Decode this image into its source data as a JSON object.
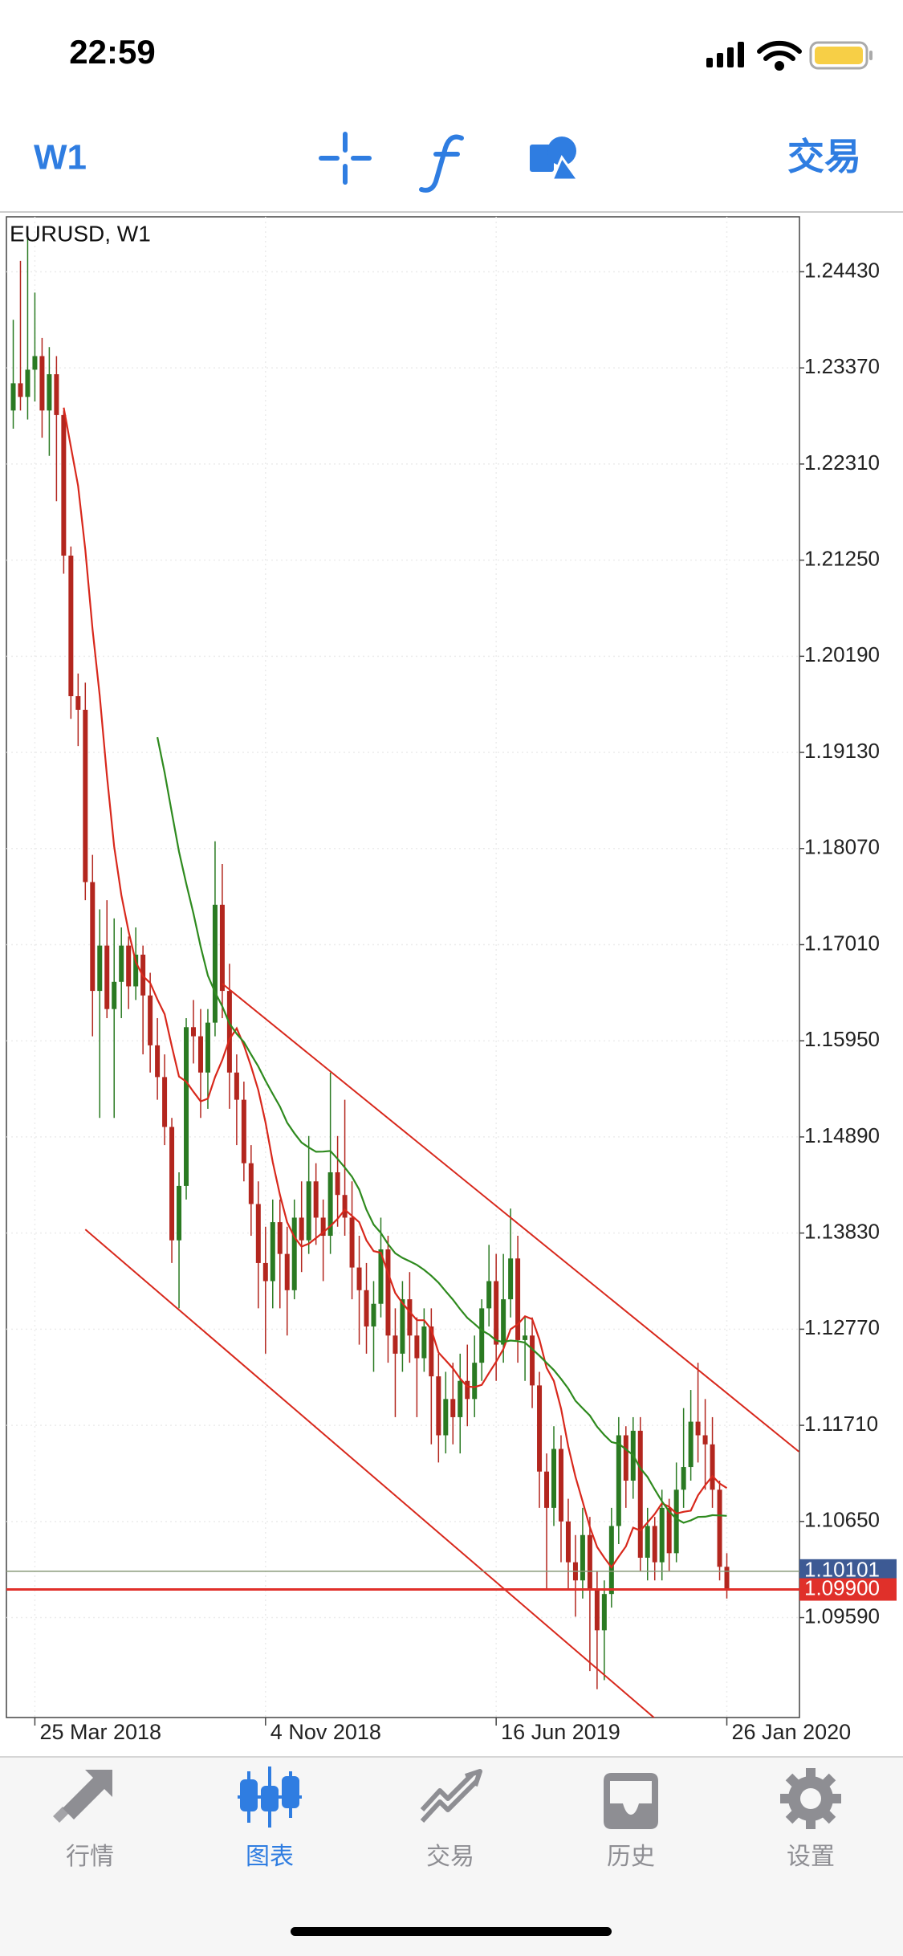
{
  "status_bar": {
    "time": "22:59"
  },
  "toolbar": {
    "timeframe": "W1",
    "trade": "交易"
  },
  "chart_data": {
    "type": "candlestick",
    "title": "EURUSD, W1",
    "categories": [
      null,
      null,
      null,
      "25 Mar 2018",
      null,
      null,
      null,
      null,
      null,
      null,
      null,
      null,
      null,
      null,
      null,
      null,
      null,
      null,
      null,
      null,
      null,
      null,
      null,
      null,
      null,
      null,
      null,
      null,
      null,
      null,
      null,
      null,
      null,
      null,
      null,
      "4 Nov 2018",
      null,
      null,
      null,
      null,
      null,
      null,
      null,
      null,
      null,
      null,
      null,
      null,
      null,
      null,
      null,
      null,
      null,
      null,
      null,
      null,
      null,
      null,
      null,
      null,
      null,
      null,
      null,
      null,
      null,
      null,
      null,
      "16 Jun 2019",
      null,
      null,
      null,
      null,
      null,
      null,
      null,
      null,
      null,
      null,
      null,
      null,
      null,
      null,
      null,
      null,
      null,
      null,
      null,
      null,
      null,
      null,
      null,
      null,
      null,
      null,
      null,
      null,
      null,
      null,
      null,
      "26 Jan 2020"
    ],
    "candles": [
      [
        1.229,
        1.239,
        1.227,
        1.232
      ],
      [
        1.232,
        1.2455,
        1.229,
        1.2305
      ],
      [
        1.2305,
        1.248,
        1.228,
        1.2335
      ],
      [
        1.2335,
        1.242,
        1.23,
        1.235
      ],
      [
        1.235,
        1.237,
        1.226,
        1.229
      ],
      [
        1.229,
        1.236,
        1.224,
        1.233
      ],
      [
        1.233,
        1.235,
        1.219,
        1.2285
      ],
      [
        1.2285,
        1.229,
        1.211,
        1.213
      ],
      [
        1.213,
        1.214,
        1.195,
        1.1975
      ],
      [
        1.1975,
        1.2,
        1.192,
        1.196
      ],
      [
        1.196,
        1.199,
        1.175,
        1.177
      ],
      [
        1.177,
        1.18,
        1.16,
        1.165
      ],
      [
        1.165,
        1.174,
        1.151,
        1.17
      ],
      [
        1.17,
        1.175,
        1.162,
        1.163
      ],
      [
        1.163,
        1.173,
        1.151,
        1.166
      ],
      [
        1.166,
        1.172,
        1.162,
        1.17
      ],
      [
        1.17,
        1.171,
        1.163,
        1.1655
      ],
      [
        1.1655,
        1.172,
        1.164,
        1.169
      ],
      [
        1.169,
        1.17,
        1.158,
        1.1645
      ],
      [
        1.1645,
        1.167,
        1.156,
        1.159
      ],
      [
        1.159,
        1.162,
        1.153,
        1.1555
      ],
      [
        1.1555,
        1.158,
        1.148,
        1.15
      ],
      [
        1.15,
        1.151,
        1.135,
        1.1375
      ],
      [
        1.1375,
        1.145,
        1.13,
        1.1435
      ],
      [
        1.1435,
        1.162,
        1.142,
        1.161
      ],
      [
        1.161,
        1.164,
        1.157,
        1.16
      ],
      [
        1.16,
        1.163,
        1.151,
        1.156
      ],
      [
        1.156,
        1.163,
        1.152,
        1.1615
      ],
      [
        1.1615,
        1.1815,
        1.16,
        1.1745
      ],
      [
        1.1745,
        1.179,
        1.162,
        1.165
      ],
      [
        1.165,
        1.168,
        1.152,
        1.156
      ],
      [
        1.156,
        1.158,
        1.148,
        1.153
      ],
      [
        1.153,
        1.155,
        1.144,
        1.146
      ],
      [
        1.146,
        1.148,
        1.138,
        1.1415
      ],
      [
        1.1415,
        1.144,
        1.13,
        1.135
      ],
      [
        1.135,
        1.139,
        1.125,
        1.133
      ],
      [
        1.133,
        1.142,
        1.13,
        1.1395
      ],
      [
        1.1395,
        1.142,
        1.13,
        1.136
      ],
      [
        1.136,
        1.139,
        1.127,
        1.132
      ],
      [
        1.132,
        1.142,
        1.131,
        1.14
      ],
      [
        1.14,
        1.144,
        1.134,
        1.1375
      ],
      [
        1.1375,
        1.149,
        1.136,
        1.144
      ],
      [
        1.144,
        1.146,
        1.137,
        1.14
      ],
      [
        1.14,
        1.142,
        1.133,
        1.138
      ],
      [
        1.138,
        1.156,
        1.136,
        1.145
      ],
      [
        1.145,
        1.149,
        1.139,
        1.1425
      ],
      [
        1.1425,
        1.153,
        1.138,
        1.14
      ],
      [
        1.14,
        1.144,
        1.131,
        1.1345
      ],
      [
        1.1345,
        1.138,
        1.126,
        1.132
      ],
      [
        1.132,
        1.135,
        1.125,
        1.128
      ],
      [
        1.128,
        1.133,
        1.123,
        1.1305
      ],
      [
        1.1305,
        1.14,
        1.129,
        1.1365
      ],
      [
        1.1365,
        1.138,
        1.124,
        1.127
      ],
      [
        1.127,
        1.13,
        1.118,
        1.125
      ],
      [
        1.125,
        1.133,
        1.123,
        1.131
      ],
      [
        1.131,
        1.134,
        1.124,
        1.127
      ],
      [
        1.127,
        1.129,
        1.118,
        1.1245
      ],
      [
        1.1245,
        1.13,
        1.123,
        1.128
      ],
      [
        1.128,
        1.13,
        1.115,
        1.1225
      ],
      [
        1.1225,
        1.125,
        1.113,
        1.116
      ],
      [
        1.116,
        1.123,
        1.114,
        1.12
      ],
      [
        1.12,
        1.124,
        1.115,
        1.118
      ],
      [
        1.118,
        1.125,
        1.114,
        1.122
      ],
      [
        1.122,
        1.126,
        1.117,
        1.12
      ],
      [
        1.12,
        1.127,
        1.118,
        1.124
      ],
      [
        1.124,
        1.131,
        1.122,
        1.13
      ],
      [
        1.13,
        1.137,
        1.128,
        1.133
      ],
      [
        1.133,
        1.136,
        1.122,
        1.126
      ],
      [
        1.126,
        1.136,
        1.124,
        1.131
      ],
      [
        1.131,
        1.141,
        1.129,
        1.1355
      ],
      [
        1.1355,
        1.138,
        1.124,
        1.1265
      ],
      [
        1.1265,
        1.129,
        1.122,
        1.127
      ],
      [
        1.127,
        1.129,
        1.119,
        1.1215
      ],
      [
        1.1215,
        1.123,
        1.108,
        1.112
      ],
      [
        1.112,
        1.114,
        1.099,
        1.108
      ],
      [
        1.108,
        1.117,
        1.106,
        1.1145
      ],
      [
        1.1145,
        1.116,
        1.102,
        1.1065
      ],
      [
        1.1065,
        1.109,
        1.099,
        1.102
      ],
      [
        1.102,
        1.105,
        1.096,
        1.1
      ],
      [
        1.1,
        1.108,
        1.098,
        1.105
      ],
      [
        1.105,
        1.107,
        1.09,
        1.099
      ],
      [
        1.099,
        1.101,
        1.088,
        1.0945
      ],
      [
        1.0945,
        1.1,
        1.089,
        1.0985
      ],
      [
        1.0985,
        1.108,
        1.097,
        1.106
      ],
      [
        1.106,
        1.118,
        1.104,
        1.116
      ],
      [
        1.116,
        1.117,
        1.108,
        1.111
      ],
      [
        1.111,
        1.118,
        1.109,
        1.1165
      ],
      [
        1.1165,
        1.118,
        1.101,
        1.1025
      ],
      [
        1.1025,
        1.108,
        1.1,
        1.106
      ],
      [
        1.106,
        1.107,
        1.1,
        1.102
      ],
      [
        1.102,
        1.11,
        1.1,
        1.108
      ],
      [
        1.108,
        1.109,
        1.101,
        1.103
      ],
      [
        1.103,
        1.113,
        1.102,
        1.11
      ],
      [
        1.11,
        1.119,
        1.108,
        1.1125
      ],
      [
        1.1125,
        1.121,
        1.111,
        1.1175
      ],
      [
        1.1175,
        1.124,
        1.113,
        1.116
      ],
      [
        1.116,
        1.12,
        1.11,
        1.115
      ],
      [
        1.115,
        1.118,
        1.108,
        1.11
      ],
      [
        1.11,
        1.111,
        1.1,
        1.1015
      ],
      [
        1.1015,
        1.103,
        1.098,
        1.099
      ]
    ],
    "up_color": "#2a7a22",
    "down_color": "#b3261e",
    "ylim": [
      1.08488,
      1.25036
    ],
    "yticks": [
      {
        "value": 1.2443,
        "label": "1.24430"
      },
      {
        "value": 1.2337,
        "label": "1.23370"
      },
      {
        "value": 1.2231,
        "label": "1.22310"
      },
      {
        "value": 1.2125,
        "label": "1.21250"
      },
      {
        "value": 1.2019,
        "label": "1.20190"
      },
      {
        "value": 1.1913,
        "label": "1.19130"
      },
      {
        "value": 1.1807,
        "label": "1.18070"
      },
      {
        "value": 1.1701,
        "label": "1.17010"
      },
      {
        "value": 1.1595,
        "label": "1.15950"
      },
      {
        "value": 1.1489,
        "label": "1.14890"
      },
      {
        "value": 1.1383,
        "label": "1.13830"
      },
      {
        "value": 1.1277,
        "label": "1.12770"
      },
      {
        "value": 1.1171,
        "label": "1.11710"
      },
      {
        "value": 1.1065,
        "label": "1.10650"
      },
      {
        "value": 1.0959,
        "label": "1.09590"
      }
    ],
    "grid": true,
    "moving_averages": [
      {
        "period": 8,
        "color": "#d8281c"
      },
      {
        "period": 21,
        "color": "#2e8a1e"
      }
    ],
    "trendlines": [
      {
        "from": {
          "index": 29,
          "price": 1.1658
        },
        "to": {
          "index": 109,
          "price": 1.1142
        },
        "color": "#d8281c"
      },
      {
        "from": {
          "index": 10,
          "price": 1.1387
        },
        "to": {
          "index": 89,
          "price": 1.0848
        },
        "color": "#d8281c"
      }
    ],
    "ask": {
      "value": 1.10101,
      "label": "1.10101",
      "color": "#3d5a94"
    },
    "bid": {
      "value": 1.099,
      "label": "1.09900",
      "color": "#e0302a"
    }
  },
  "tab_bar": {
    "tabs": [
      {
        "label": "行情",
        "active": false
      },
      {
        "label": "图表",
        "active": true
      },
      {
        "label": "交易",
        "active": false
      },
      {
        "label": "历史",
        "active": false
      },
      {
        "label": "设置",
        "active": false
      }
    ]
  }
}
